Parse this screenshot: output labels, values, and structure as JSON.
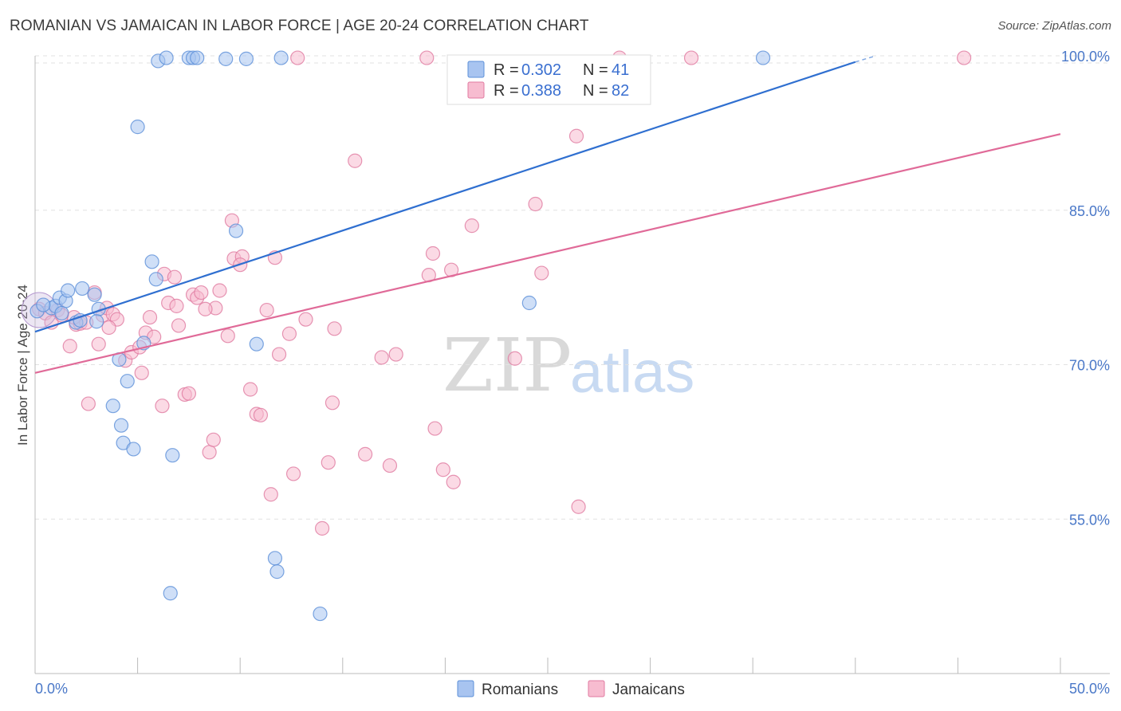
{
  "header": {
    "title": "ROMANIAN VS JAMAICAN IN LABOR FORCE | AGE 20-24 CORRELATION CHART",
    "source": "Source: ZipAtlas.com"
  },
  "watermark": {
    "zip": "ZIP",
    "atlas": "atlas"
  },
  "legend_box": {
    "rows": [
      {
        "r_label": "R = ",
        "r_value": "0.302",
        "n_label": "N = ",
        "n_value": "41",
        "color": "#a8c4f0",
        "stroke": "#5b8fd8"
      },
      {
        "r_label": "R = ",
        "r_value": "0.388",
        "n_label": "N = ",
        "n_value": "82",
        "color": "#f7bcd0",
        "stroke": "#e07aa0"
      }
    ]
  },
  "bottom_legend": [
    {
      "label": "Romanians",
      "color": "#a8c4f0",
      "stroke": "#5b8fd8"
    },
    {
      "label": "Jamaicans",
      "color": "#f7bcd0",
      "stroke": "#e07aa0"
    }
  ],
  "chart_data": {
    "type": "scatter",
    "title": "ROMANIAN VS JAMAICAN IN LABOR FORCE | AGE 20-24 CORRELATION CHART",
    "xlabel": "",
    "ylabel": "In Labor Force | Age 20-24",
    "xlim": [
      0,
      50
    ],
    "ylim": [
      40,
      100
    ],
    "x_tick_labels": [
      "0.0%",
      "50.0%"
    ],
    "y_ticks": [
      55,
      70,
      85,
      100
    ],
    "y_tick_labels": [
      "55.0%",
      "70.0%",
      "85.0%",
      "100.0%"
    ],
    "grid": true,
    "series": [
      {
        "name": "Romanians",
        "color": "#5b8fd8",
        "fill": "#a8c4f0",
        "trend": {
          "x0": 0,
          "y0": 73.2,
          "x1": 40,
          "y1": 99.4,
          "dash_x1": 41,
          "dash_y1": 100.0,
          "color": "#2f6fd0"
        },
        "points": [
          [
            0.1,
            75.2
          ],
          [
            0.8,
            75.5
          ],
          [
            1.0,
            75.7
          ],
          [
            1.2,
            76.5
          ],
          [
            1.5,
            76.2
          ],
          [
            1.6,
            77.2
          ],
          [
            2.0,
            74.1
          ],
          [
            2.3,
            77.4
          ],
          [
            2.9,
            76.8
          ],
          [
            3.1,
            75.4
          ],
          [
            3.8,
            66.0
          ],
          [
            4.1,
            70.5
          ],
          [
            4.2,
            64.1
          ],
          [
            4.3,
            62.4
          ],
          [
            4.5,
            68.4
          ],
          [
            4.8,
            61.8
          ],
          [
            5.0,
            93.1
          ],
          [
            5.3,
            72.1
          ],
          [
            5.7,
            80.0
          ],
          [
            5.9,
            78.3
          ],
          [
            6.0,
            99.5
          ],
          [
            6.4,
            99.8
          ],
          [
            6.7,
            61.2
          ],
          [
            7.5,
            99.8
          ],
          [
            7.7,
            99.8
          ],
          [
            7.9,
            99.8
          ],
          [
            6.6,
            47.8
          ],
          [
            9.3,
            99.7
          ],
          [
            10.3,
            99.7
          ],
          [
            9.8,
            83.0
          ],
          [
            10.8,
            72.0
          ],
          [
            11.7,
            51.2
          ],
          [
            11.8,
            49.9
          ],
          [
            12.0,
            99.8
          ],
          [
            13.9,
            45.8
          ],
          [
            24.1,
            76.0
          ],
          [
            35.5,
            99.8
          ],
          [
            3.0,
            74.2
          ],
          [
            1.3,
            75.0
          ],
          [
            0.4,
            75.8
          ],
          [
            2.2,
            74.3
          ]
        ]
      },
      {
        "name": "Jamaicans",
        "color": "#e07aa0",
        "fill": "#f7bcd0",
        "trend": {
          "x0": 0,
          "y0": 69.2,
          "x1": 50,
          "y1": 92.4,
          "color": "#e06a98"
        },
        "points": [
          [
            0.2,
            75.4
          ],
          [
            0.5,
            75.0
          ],
          [
            0.8,
            74.1
          ],
          [
            1.1,
            75.3
          ],
          [
            1.3,
            74.8
          ],
          [
            1.7,
            71.8
          ],
          [
            2.0,
            73.9
          ],
          [
            2.2,
            74.0
          ],
          [
            2.5,
            74.1
          ],
          [
            2.6,
            66.2
          ],
          [
            2.9,
            77.0
          ],
          [
            3.1,
            72.0
          ],
          [
            3.3,
            74.8
          ],
          [
            3.5,
            75.5
          ],
          [
            3.8,
            74.9
          ],
          [
            4.0,
            74.4
          ],
          [
            4.4,
            70.4
          ],
          [
            4.7,
            71.2
          ],
          [
            5.1,
            71.7
          ],
          [
            5.2,
            69.2
          ],
          [
            5.4,
            73.1
          ],
          [
            5.6,
            74.6
          ],
          [
            5.8,
            72.7
          ],
          [
            6.2,
            66.0
          ],
          [
            6.3,
            78.8
          ],
          [
            6.5,
            76.0
          ],
          [
            6.8,
            78.5
          ],
          [
            7.0,
            73.8
          ],
          [
            7.3,
            67.1
          ],
          [
            7.5,
            67.2
          ],
          [
            7.7,
            76.8
          ],
          [
            7.9,
            76.5
          ],
          [
            8.1,
            77.0
          ],
          [
            8.5,
            61.5
          ],
          [
            8.7,
            62.7
          ],
          [
            8.8,
            75.5
          ],
          [
            9.0,
            77.2
          ],
          [
            9.4,
            72.8
          ],
          [
            9.6,
            84.0
          ],
          [
            9.7,
            80.3
          ],
          [
            10.1,
            80.5
          ],
          [
            10.0,
            79.7
          ],
          [
            10.5,
            67.6
          ],
          [
            10.8,
            65.2
          ],
          [
            11.0,
            65.1
          ],
          [
            11.3,
            75.3
          ],
          [
            11.5,
            57.4
          ],
          [
            11.7,
            80.4
          ],
          [
            11.9,
            71.0
          ],
          [
            12.4,
            73.0
          ],
          [
            12.6,
            59.4
          ],
          [
            14.0,
            54.1
          ],
          [
            14.3,
            60.5
          ],
          [
            14.5,
            66.3
          ],
          [
            14.6,
            73.5
          ],
          [
            15.6,
            89.8
          ],
          [
            16.1,
            61.3
          ],
          [
            16.9,
            70.7
          ],
          [
            17.3,
            60.2
          ],
          [
            17.6,
            71.0
          ],
          [
            19.1,
            99.8
          ],
          [
            19.2,
            78.7
          ],
          [
            19.4,
            80.8
          ],
          [
            19.5,
            63.8
          ],
          [
            19.9,
            59.8
          ],
          [
            20.3,
            79.2
          ],
          [
            20.4,
            58.6
          ],
          [
            21.3,
            83.5
          ],
          [
            23.4,
            70.6
          ],
          [
            24.4,
            85.6
          ],
          [
            24.7,
            78.9
          ],
          [
            26.4,
            92.2
          ],
          [
            26.5,
            56.2
          ],
          [
            28.5,
            99.8
          ],
          [
            32.0,
            99.8
          ],
          [
            12.8,
            99.8
          ],
          [
            45.3,
            99.8
          ],
          [
            1.9,
            74.6
          ],
          [
            3.6,
            73.6
          ],
          [
            8.3,
            75.4
          ],
          [
            13.2,
            74.4
          ],
          [
            6.9,
            75.7
          ]
        ]
      }
    ]
  }
}
